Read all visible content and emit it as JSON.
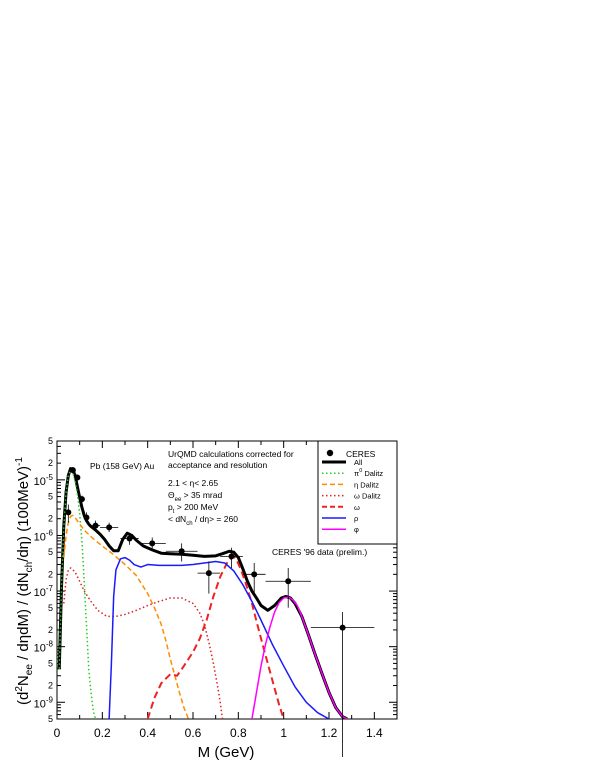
{
  "chart_data": {
    "type": "line",
    "y_scale": "log",
    "xlim": [
      0,
      1.5
    ],
    "ylim": [
      5e-10,
      5e-05
    ],
    "xlabel": "M (GeV)",
    "ylabel": "(d²Nee / dηdM) / (dNch/dη) (100MeV)⁻¹",
    "x_ticks": [
      "0",
      "0.2",
      "0.4",
      "0.6",
      "0.8",
      "1",
      "1.2",
      "1.4"
    ],
    "y_tick_labels": [
      {
        "mantissa": "5",
        "exp": ""
      },
      {
        "mantissa": "2",
        "exp": ""
      },
      {
        "mantissa": "10",
        "exp": "-5"
      },
      {
        "mantissa": "5",
        "exp": ""
      },
      {
        "mantissa": "2",
        "exp": ""
      },
      {
        "mantissa": "10",
        "exp": "-6"
      },
      {
        "mantissa": "5",
        "exp": ""
      },
      {
        "mantissa": "2",
        "exp": ""
      },
      {
        "mantissa": "10",
        "exp": "-7"
      },
      {
        "mantissa": "5",
        "exp": ""
      },
      {
        "mantissa": "2",
        "exp": ""
      },
      {
        "mantissa": "10",
        "exp": "-8"
      },
      {
        "mantissa": "5",
        "exp": ""
      },
      {
        "mantissa": "2",
        "exp": ""
      },
      {
        "mantissa": "10",
        "exp": "-9"
      },
      {
        "mantissa": "5",
        "exp": ""
      }
    ],
    "legend_title": "CERES",
    "legend": [
      {
        "label": "All",
        "sub": "",
        "sup": ""
      },
      {
        "label": "π",
        "sub": "",
        "sup": "0",
        "suffix": " Dalitz"
      },
      {
        "label": "η Dalitz",
        "sub": "",
        "sup": ""
      },
      {
        "label": "ω Dalitz",
        "sub": "",
        "sup": ""
      },
      {
        "label": "ω",
        "sub": "",
        "sup": ""
      },
      {
        "label": "ρ",
        "sub": "",
        "sup": ""
      },
      {
        "label": "φ",
        "sub": "",
        "sup": ""
      }
    ],
    "annotations": {
      "system": "Pb (158 GeV) Au",
      "calc_line1": "UrQMD calculations corrected for",
      "calc_line2": "acceptance and resolution",
      "cut_eta": "2.1 < η< 2.65",
      "cut_theta": "Θee > 35 mrad",
      "cut_pt": "pt > 200 MeV",
      "cut_mult": "< dNch / dη> = 260",
      "data_label": "CERES '96 data (prelim.)"
    },
    "series": [
      {
        "name": "All",
        "color": "#000000",
        "style": "solid",
        "width": 3,
        "x": [
          0.01,
          0.02,
          0.03,
          0.04,
          0.05,
          0.06,
          0.07,
          0.08,
          0.09,
          0.1,
          0.11,
          0.12,
          0.13,
          0.14,
          0.15,
          0.17,
          0.19,
          0.21,
          0.23,
          0.25,
          0.27,
          0.29,
          0.31,
          0.33,
          0.35,
          0.38,
          0.42,
          0.46,
          0.5,
          0.55,
          0.6,
          0.65,
          0.7,
          0.73,
          0.76,
          0.78,
          0.8,
          0.82,
          0.84,
          0.86,
          0.88,
          0.9,
          0.93,
          0.96,
          0.99,
          1.01,
          1.03,
          1.05,
          1.08,
          1.11,
          1.14,
          1.17,
          1.2,
          1.23,
          1.26,
          1.28
        ],
        "y": [
          4e-09,
          1.2e-07,
          1.5e-06,
          6e-06,
          1.2e-05,
          1.6e-05,
          1.5e-05,
          1.2e-05,
          7.5e-06,
          4.8e-06,
          3.2e-06,
          2.3e-06,
          1.85e-06,
          1.6e-06,
          1.45e-06,
          1.25e-06,
          1.05e-06,
          8.5e-07,
          6.5e-07,
          5.3e-07,
          5.3e-07,
          8.5e-07,
          1.1e-06,
          1e-06,
          8.2e-07,
          6.5e-07,
          5.5e-07,
          4.8e-07,
          4.7e-07,
          4.6e-07,
          4.4e-07,
          4.2e-07,
          4.3e-07,
          4.7e-07,
          5.2e-07,
          5e-07,
          4e-07,
          2.5e-07,
          1.5e-07,
          1e-07,
          7.5e-08,
          5.5e-08,
          4.5e-08,
          5.5e-08,
          7.5e-08,
          8e-08,
          7.5e-08,
          6e-08,
          3.5e-08,
          1.6e-08,
          7e-09,
          3.2e-09,
          1.5e-09,
          8e-10,
          5.5e-10,
          5e-10
        ]
      },
      {
        "name": "π0 Dalitz",
        "color": "#22cc22",
        "style": "dotted",
        "width": 1.5,
        "x": [
          0.01,
          0.02,
          0.03,
          0.04,
          0.05,
          0.06,
          0.07,
          0.08,
          0.09,
          0.1,
          0.11,
          0.12,
          0.13,
          0.14,
          0.15,
          0.16,
          0.17
        ],
        "y": [
          4e-09,
          1.2e-07,
          1.4e-06,
          6e-06,
          1.2e-05,
          1.5e-05,
          1.35e-05,
          9.5e-06,
          5.5e-06,
          2.5e-06,
          8e-07,
          1.5e-07,
          2.5e-08,
          4e-09,
          1.5e-09,
          7e-10,
          5e-10
        ]
      },
      {
        "name": "η Dalitz",
        "color": "#ff8c00",
        "style": "dashed",
        "width": 1.5,
        "x": [
          0.03,
          0.04,
          0.05,
          0.06,
          0.07,
          0.08,
          0.1,
          0.12,
          0.15,
          0.18,
          0.21,
          0.25,
          0.3,
          0.35,
          0.4,
          0.43,
          0.46,
          0.48,
          0.5,
          0.52,
          0.54,
          0.56,
          0.58
        ],
        "y": [
          4e-07,
          1e-06,
          1.7e-06,
          2.2e-06,
          2.3e-06,
          2.1e-06,
          1.6e-06,
          1.25e-06,
          9.5e-07,
          7.5e-07,
          6e-07,
          4.5e-07,
          3e-07,
          1.9e-07,
          9e-08,
          5e-08,
          2.5e-08,
          1.3e-08,
          6e-09,
          3e-09,
          1.5e-09,
          8e-10,
          5e-10
        ]
      },
      {
        "name": "ω Dalitz",
        "color": "#dd2222",
        "style": "dotted",
        "width": 1.5,
        "x": [
          0.03,
          0.04,
          0.05,
          0.06,
          0.08,
          0.1,
          0.12,
          0.15,
          0.18,
          0.22,
          0.26,
          0.3,
          0.35,
          0.4,
          0.45,
          0.5,
          0.55,
          0.6,
          0.63,
          0.65,
          0.67,
          0.69,
          0.71,
          0.72,
          0.73
        ],
        "y": [
          6e-08,
          1.6e-07,
          2.4e-07,
          2.6e-07,
          2.2e-07,
          1.5e-07,
          1e-07,
          6.5e-08,
          4.5e-08,
          3.5e-08,
          3.5e-08,
          3.8e-08,
          4.5e-08,
          5.5e-08,
          6.5e-08,
          7.5e-08,
          7.5e-08,
          6e-08,
          4e-08,
          2.5e-08,
          1.2e-08,
          5e-09,
          1.8e-09,
          1e-09,
          5e-10
        ]
      },
      {
        "name": "ω",
        "color": "#ee2222",
        "style": "dashed",
        "width": 2,
        "x": [
          0.4,
          0.43,
          0.46,
          0.5,
          0.53,
          0.56,
          0.6,
          0.63,
          0.66,
          0.69,
          0.72,
          0.75,
          0.77,
          0.78,
          0.79,
          0.81,
          0.83,
          0.86,
          0.89,
          0.92,
          0.95,
          0.98,
          1.0
        ],
        "y": [
          5e-10,
          1.2e-09,
          2.2e-09,
          3.2e-09,
          3e-09,
          4.5e-09,
          8e-09,
          1.4e-08,
          3e-08,
          8e-08,
          1.8e-07,
          3.2e-07,
          4e-07,
          4.2e-07,
          3.8e-07,
          2.5e-07,
          1.5e-07,
          6e-08,
          2e-08,
          7e-09,
          2.5e-09,
          9e-10,
          5e-10
        ]
      },
      {
        "name": "ρ",
        "color": "#1a1aff",
        "style": "solid",
        "width": 1.5,
        "x": [
          0.23,
          0.24,
          0.25,
          0.26,
          0.28,
          0.3,
          0.32,
          0.34,
          0.37,
          0.4,
          0.45,
          0.5,
          0.55,
          0.6,
          0.65,
          0.7,
          0.74,
          0.78,
          0.82,
          0.86,
          0.9,
          0.95,
          1.0,
          1.05,
          1.1,
          1.15,
          1.2
        ],
        "y": [
          5e-10,
          5e-09,
          8e-08,
          2.4e-07,
          3.8e-07,
          4e-07,
          3.6e-07,
          3e-07,
          2.7e-07,
          3e-07,
          2.9e-07,
          2.9e-07,
          2.9e-07,
          3e-07,
          3.2e-07,
          3.4e-07,
          3.2e-07,
          2.3e-07,
          1.3e-07,
          6.5e-08,
          3e-08,
          1.1e-08,
          4.5e-09,
          1.9e-09,
          1e-09,
          6.5e-10,
          5e-10
        ]
      },
      {
        "name": "φ",
        "color": "#ff00ff",
        "style": "solid",
        "width": 1.5,
        "x": [
          0.86,
          0.88,
          0.9,
          0.92,
          0.94,
          0.96,
          0.98,
          1.0,
          1.02,
          1.04,
          1.06,
          1.08,
          1.11,
          1.14,
          1.17,
          1.2,
          1.23,
          1.26,
          1.28
        ],
        "y": [
          5e-10,
          1.5e-09,
          4.5e-09,
          1.1e-08,
          2.3e-08,
          4.2e-08,
          6.2e-08,
          7.5e-08,
          7.8e-08,
          7e-08,
          5.5e-08,
          3.5e-08,
          1.6e-08,
          7e-09,
          3.2e-09,
          1.5e-09,
          8e-10,
          5.5e-10,
          5e-10
        ]
      }
    ],
    "data_points": [
      {
        "x": 0.05,
        "y": 2.6e-06,
        "xerr": 0.005,
        "ylo": 1.7e-06,
        "yhi": 3.6e-06
      },
      {
        "x": 0.07,
        "y": 1.5e-05,
        "xerr": 0.005,
        "ylo": 1.3e-05,
        "yhi": 1.7e-05
      },
      {
        "x": 0.09,
        "y": 1.1e-05,
        "xerr": 0.005,
        "ylo": 9.8e-06,
        "yhi": 1.22e-05
      },
      {
        "x": 0.11,
        "y": 4.5e-06,
        "xerr": 0.005,
        "ylo": 3.9e-06,
        "yhi": 5.2e-06
      },
      {
        "x": 0.13,
        "y": 2.1e-06,
        "xerr": 0.01,
        "ylo": 1.7e-06,
        "yhi": 2.6e-06
      },
      {
        "x": 0.17,
        "y": 1.5e-06,
        "xerr": 0.02,
        "ylo": 1.2e-06,
        "yhi": 1.85e-06
      },
      {
        "x": 0.23,
        "y": 1.4e-06,
        "xerr": 0.04,
        "ylo": 1.15e-06,
        "yhi": 1.7e-06
      },
      {
        "x": 0.32,
        "y": 8.8e-07,
        "xerr": 0.04,
        "ylo": 6.8e-07,
        "yhi": 1.12e-06
      },
      {
        "x": 0.42,
        "y": 7.2e-07,
        "xerr": 0.06,
        "ylo": 5.5e-07,
        "yhi": 9.2e-07
      },
      {
        "x": 0.55,
        "y": 5.2e-07,
        "xerr": 0.07,
        "ylo": 3.4e-07,
        "yhi": 7.2e-07
      },
      {
        "x": 0.67,
        "y": 2.1e-07,
        "xerr": 0.05,
        "ylo": 9e-08,
        "yhi": 3.4e-07
      },
      {
        "x": 0.77,
        "y": 4.2e-07,
        "xerr": 0.05,
        "ylo": 2.6e-07,
        "yhi": 6e-07
      },
      {
        "x": 0.87,
        "y": 2e-07,
        "xerr": 0.05,
        "ylo": 9e-08,
        "yhi": 3.2e-07
      },
      {
        "x": 1.02,
        "y": 1.5e-07,
        "xerr": 0.1,
        "ylo": 5e-08,
        "yhi": 2.6e-07
      },
      {
        "x": 1.26,
        "y": 2.2e-08,
        "xerr": 0.14,
        "ylo": 1e-11,
        "yhi": 4.2e-08
      }
    ]
  }
}
